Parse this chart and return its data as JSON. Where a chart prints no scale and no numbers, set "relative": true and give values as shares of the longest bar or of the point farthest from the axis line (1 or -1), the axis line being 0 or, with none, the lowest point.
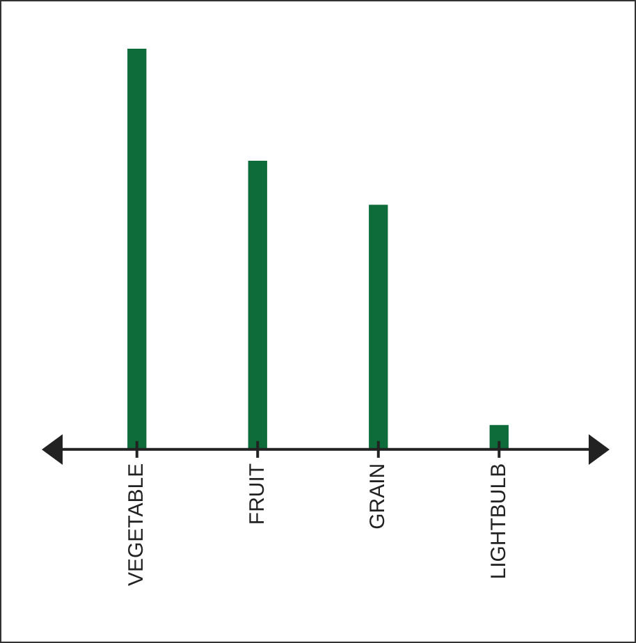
{
  "chart_data": {
    "type": "bar",
    "relative": true,
    "categories": [
      "VEGETABLE",
      "FRUIT",
      "GRAIN",
      "LIGHTBULB"
    ],
    "values": [
      1,
      0.72,
      0.61,
      0.06
    ],
    "color": "#0e6b3a"
  }
}
